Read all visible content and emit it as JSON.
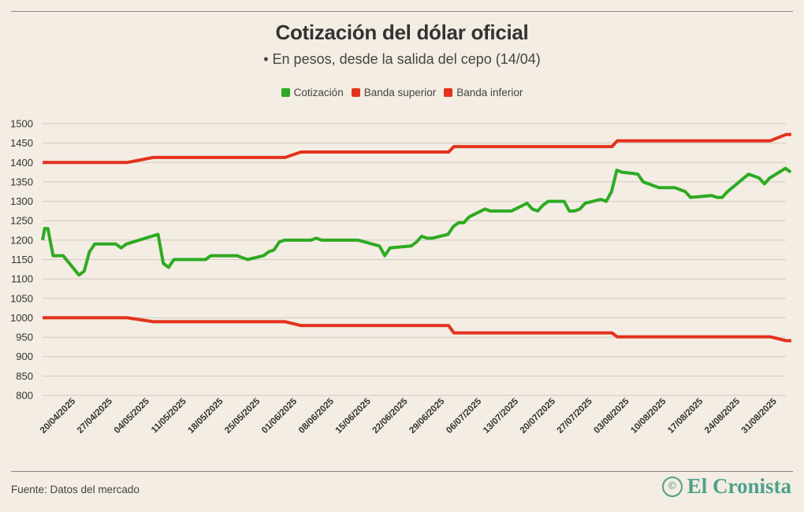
{
  "brand": {
    "name": "El Cronista",
    "icon": "©"
  },
  "source": "Fuente: Datos del mercado",
  "colors": {
    "cotizacion": "#2eaa22",
    "banda_superior": "#e3321c",
    "banda_inferior": "#e3321c",
    "grid": "#cfc9bf",
    "brand": "#4fa089"
  },
  "chart_data": {
    "type": "line",
    "title": "Cotización del dólar oficial",
    "subtitle": "• En pesos, desde la salida del cepo (14/04)",
    "xlabel": "",
    "ylabel": "",
    "ylim": [
      800,
      1500
    ],
    "yticks": [
      800,
      850,
      900,
      950,
      1000,
      1050,
      1100,
      1150,
      1200,
      1250,
      1300,
      1350,
      1400,
      1450,
      1500
    ],
    "xrange": [
      0,
      140
    ],
    "xticks": [
      {
        "label": "20/04/2025",
        "x": 6
      },
      {
        "label": "27/04/2025",
        "x": 13
      },
      {
        "label": "04/05/2025",
        "x": 20
      },
      {
        "label": "11/05/2025",
        "x": 27
      },
      {
        "label": "18/05/2025",
        "x": 34
      },
      {
        "label": "25/05/2025",
        "x": 41
      },
      {
        "label": "01/06/2025",
        "x": 48
      },
      {
        "label": "08/06/2025",
        "x": 55
      },
      {
        "label": "15/06/2025",
        "x": 62
      },
      {
        "label": "22/06/2025",
        "x": 69
      },
      {
        "label": "29/06/2025",
        "x": 76
      },
      {
        "label": "06/07/2025",
        "x": 83
      },
      {
        "label": "13/07/2025",
        "x": 90
      },
      {
        "label": "20/07/2025",
        "x": 97
      },
      {
        "label": "27/07/2025",
        "x": 104
      },
      {
        "label": "03/08/2025",
        "x": 111
      },
      {
        "label": "10/08/2025",
        "x": 118
      },
      {
        "label": "17/08/2025",
        "x": 125
      },
      {
        "label": "24/08/2025",
        "x": 132
      },
      {
        "label": "31/08/2025",
        "x": 139
      }
    ],
    "grid": true,
    "legend_position": "top-center",
    "series": [
      {
        "name": "Cotización",
        "points": [
          [
            0,
            1200
          ],
          [
            0.4,
            1230
          ],
          [
            1,
            1230
          ],
          [
            2,
            1160
          ],
          [
            3.9,
            1160
          ],
          [
            6.9,
            1110
          ],
          [
            7.9,
            1120
          ],
          [
            8.9,
            1170
          ],
          [
            9.9,
            1190
          ],
          [
            13.9,
            1190
          ],
          [
            14.9,
            1180
          ],
          [
            15.9,
            1190
          ],
          [
            21.9,
            1215
          ],
          [
            22.9,
            1140
          ],
          [
            23.9,
            1130
          ],
          [
            24.9,
            1150
          ],
          [
            30.9,
            1150
          ],
          [
            31.9,
            1160
          ],
          [
            36.9,
            1160
          ],
          [
            38.9,
            1150
          ],
          [
            41.9,
            1160
          ],
          [
            42.9,
            1170
          ],
          [
            43.9,
            1175
          ],
          [
            44.9,
            1195
          ],
          [
            45.9,
            1200
          ],
          [
            50.9,
            1200
          ],
          [
            51.9,
            1205
          ],
          [
            52.9,
            1200
          ],
          [
            59.9,
            1200
          ],
          [
            63.9,
            1185
          ],
          [
            64.9,
            1160
          ],
          [
            65.9,
            1180
          ],
          [
            69.9,
            1185
          ],
          [
            70.9,
            1195
          ],
          [
            71.9,
            1210
          ],
          [
            72.9,
            1205
          ],
          [
            73.9,
            1205
          ],
          [
            76.9,
            1215
          ],
          [
            77.9,
            1235
          ],
          [
            78.9,
            1245
          ],
          [
            79.9,
            1245
          ],
          [
            80.9,
            1260
          ],
          [
            83.9,
            1280
          ],
          [
            84.9,
            1275
          ],
          [
            88.9,
            1275
          ],
          [
            91.9,
            1295
          ],
          [
            92.9,
            1280
          ],
          [
            93.9,
            1275
          ],
          [
            94.9,
            1290
          ],
          [
            95.9,
            1300
          ],
          [
            98.9,
            1300
          ],
          [
            99.9,
            1275
          ],
          [
            100.9,
            1275
          ],
          [
            101.9,
            1280
          ],
          [
            102.9,
            1295
          ],
          [
            105.9,
            1305
          ],
          [
            106.9,
            1300
          ],
          [
            107.9,
            1325
          ],
          [
            108.9,
            1380
          ],
          [
            109.9,
            1375
          ],
          [
            111.9,
            1372
          ],
          [
            112.9,
            1370
          ],
          [
            113.9,
            1350
          ],
          [
            116.9,
            1335
          ],
          [
            119.9,
            1335
          ],
          [
            121.9,
            1325
          ],
          [
            122.9,
            1310
          ],
          [
            126.9,
            1315
          ],
          [
            127.9,
            1310
          ],
          [
            128.9,
            1310
          ],
          [
            129.9,
            1325
          ],
          [
            133.9,
            1370
          ],
          [
            135.9,
            1360
          ],
          [
            136.9,
            1345
          ],
          [
            137.9,
            1360
          ],
          [
            140.9,
            1385
          ],
          [
            141.9,
            1375
          ]
        ]
      },
      {
        "name": "Banda superior",
        "points": [
          [
            0,
            1400
          ],
          [
            16,
            1400
          ],
          [
            21,
            1413
          ],
          [
            46,
            1413
          ],
          [
            49,
            1427
          ],
          [
            77,
            1427
          ],
          [
            78,
            1441
          ],
          [
            108,
            1441
          ],
          [
            109,
            1456
          ],
          [
            138,
            1456
          ],
          [
            141,
            1472
          ],
          [
            142,
            1472
          ]
        ]
      },
      {
        "name": "Banda inferior",
        "points": [
          [
            0,
            1000
          ],
          [
            16,
            1000
          ],
          [
            21,
            990
          ],
          [
            46,
            990
          ],
          [
            49,
            980
          ],
          [
            77,
            980
          ],
          [
            78,
            961
          ],
          [
            108,
            961
          ],
          [
            109,
            951
          ],
          [
            138,
            951
          ],
          [
            141,
            941
          ],
          [
            142,
            941
          ]
        ]
      }
    ]
  }
}
